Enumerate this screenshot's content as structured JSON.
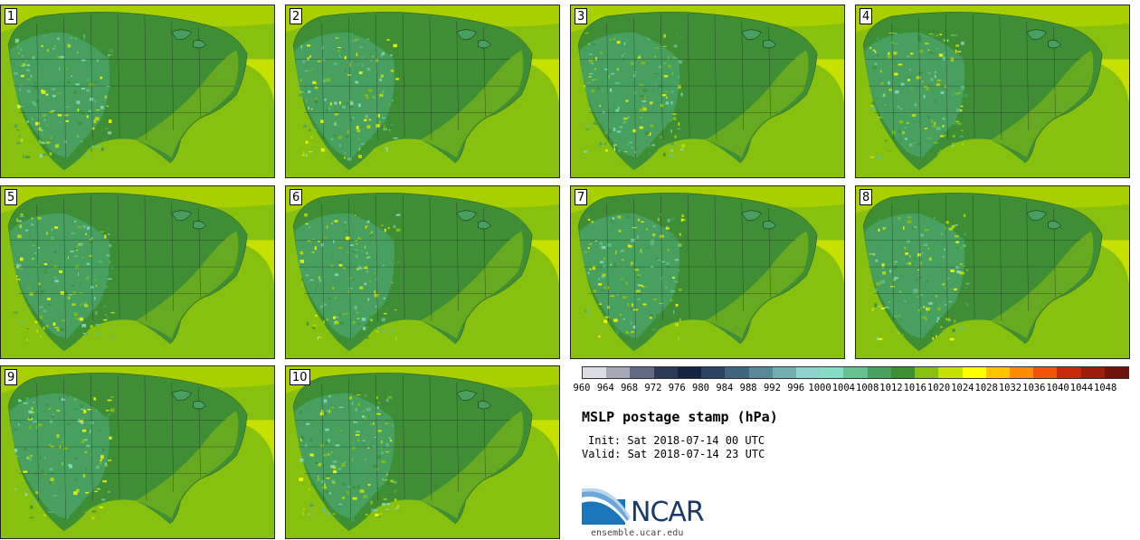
{
  "panels": [
    {
      "label": "1"
    },
    {
      "label": "2"
    },
    {
      "label": "3"
    },
    {
      "label": "4"
    },
    {
      "label": "5"
    },
    {
      "label": "6"
    },
    {
      "label": "7"
    },
    {
      "label": "8"
    },
    {
      "label": "9"
    },
    {
      "label": "10"
    }
  ],
  "colorbar": {
    "ticks": [
      "960",
      "964",
      "968",
      "972",
      "976",
      "980",
      "984",
      "988",
      "992",
      "996",
      "1000",
      "1004",
      "1008",
      "1012",
      "1016",
      "1020",
      "1024",
      "1028",
      "1032",
      "1036",
      "1040",
      "1044",
      "1048"
    ],
    "colors": [
      "#dcdde4",
      "#a6a8b6",
      "#626a84",
      "#2c3a58",
      "#152440",
      "#2b4360",
      "#40667e",
      "#5a8898",
      "#73acb2",
      "#8ed2cc",
      "#86dcc6",
      "#66c090",
      "#48a060",
      "#3e8e36",
      "#88c010",
      "#c6e000",
      "#ffff00",
      "#ffc400",
      "#ff8c00",
      "#f05208",
      "#c8280c",
      "#9c1c10",
      "#6c140c"
    ]
  },
  "title": "MSLP postage stamp (hPa)",
  "init": "Init: Sat 2018-07-14 00 UTC",
  "valid": "Valid: Sat 2018-07-14 23 UTC",
  "logo": {
    "text": "NCAR",
    "icon": "ncar-logo-icon"
  },
  "site": "ensemble.ucar.edu"
}
